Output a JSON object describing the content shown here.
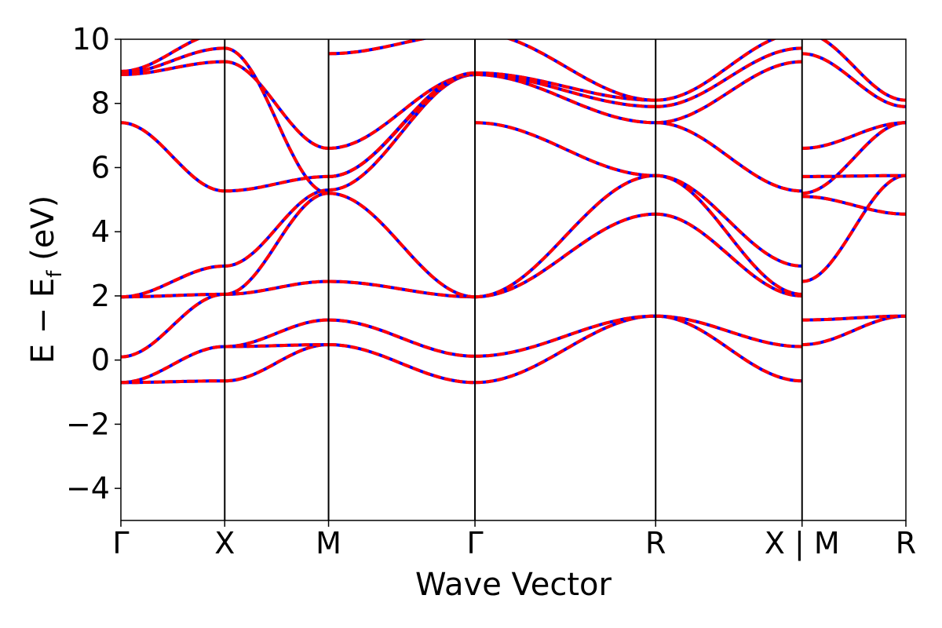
{
  "chart_data": {
    "type": "line",
    "xlabel": "Wave Vector",
    "ylabel": {
      "main": "E − E",
      "sub": "f",
      "unit": " (eV)"
    },
    "ylim": [
      -5,
      10
    ],
    "yticks": [
      -4,
      -2,
      0,
      2,
      4,
      6,
      8,
      10
    ],
    "ytick_labels": [
      "−4",
      "−2",
      "0",
      "2",
      "4",
      "6",
      "8",
      "10"
    ],
    "xlim": [
      0,
      7.56
    ],
    "kpoints": [
      {
        "label": "Γ",
        "x": 0
      },
      {
        "label": "X",
        "x": 1.0
      },
      {
        "label": "M",
        "x": 2.0
      },
      {
        "label": "Γ",
        "x": 3.41
      },
      {
        "label": "R",
        "x": 5.15
      },
      {
        "label": "X | M",
        "x": 6.56
      },
      {
        "label": "R",
        "x": 7.56
      }
    ],
    "grid": false,
    "line_colors": {
      "primary": "#ff0000",
      "overlay": "#0000ff"
    },
    "segments": [
      {
        "from": "Γ",
        "to": "X",
        "x0": 0,
        "x1": 1.0,
        "bands": [
          [
            -0.7,
            -0.65
          ],
          [
            -0.7,
            0.42
          ],
          [
            0.1,
            2.05
          ],
          [
            1.97,
            2.05
          ],
          [
            1.97,
            2.93
          ],
          [
            7.4,
            5.27
          ],
          [
            8.9,
            9.3
          ],
          [
            8.95,
            9.72
          ],
          [
            9.0,
            10.2
          ]
        ]
      },
      {
        "from": "X",
        "to": "M",
        "x0": 1.0,
        "x1": 2.0,
        "bands": [
          [
            -0.65,
            0.48
          ],
          [
            0.42,
            0.48
          ],
          [
            0.42,
            1.25
          ],
          [
            2.05,
            2.45
          ],
          [
            2.05,
            5.2
          ],
          [
            2.93,
            5.3
          ],
          [
            5.27,
            5.72
          ],
          [
            9.3,
            6.6
          ],
          [
            9.72,
            5.2
          ]
        ]
      },
      {
        "from": "M",
        "to": "Γ",
        "x0": 2.0,
        "x1": 3.41,
        "bands": [
          [
            0.48,
            -0.7
          ],
          [
            1.25,
            0.12
          ],
          [
            2.45,
            1.97
          ],
          [
            5.2,
            1.97
          ],
          [
            5.3,
            8.9
          ],
          [
            5.72,
            8.9
          ],
          [
            6.6,
            8.9
          ],
          [
            5.72,
            8.95
          ],
          [
            9.55,
            10.2
          ]
        ]
      },
      {
        "from": "Γ",
        "to": "R",
        "x0": 3.41,
        "x1": 5.15,
        "bands": [
          [
            -0.7,
            1.37
          ],
          [
            0.12,
            1.37
          ],
          [
            1.97,
            4.55
          ],
          [
            1.97,
            5.75
          ],
          [
            7.4,
            5.75
          ],
          [
            8.9,
            7.4
          ],
          [
            8.9,
            7.9
          ],
          [
            8.95,
            8.1
          ],
          [
            10.2,
            8.1
          ]
        ]
      },
      {
        "from": "R",
        "to": "X",
        "x0": 5.15,
        "x1": 6.56,
        "bands": [
          [
            1.37,
            -0.65
          ],
          [
            1.37,
            0.42
          ],
          [
            4.55,
            2.0
          ],
          [
            5.75,
            2.05
          ],
          [
            5.75,
            2.93
          ],
          [
            7.4,
            5.27
          ],
          [
            7.4,
            9.3
          ],
          [
            7.9,
            9.72
          ],
          [
            8.1,
            10.2
          ]
        ]
      },
      {
        "from": "M",
        "to": "R",
        "x0": 6.56,
        "x1": 7.56,
        "bands": [
          [
            0.48,
            1.37
          ],
          [
            1.25,
            1.37
          ],
          [
            2.45,
            5.75
          ],
          [
            5.1,
            4.55
          ],
          [
            5.2,
            7.4
          ],
          [
            5.72,
            5.75
          ],
          [
            6.6,
            7.4
          ],
          [
            9.55,
            7.9
          ],
          [
            10.2,
            8.1
          ]
        ]
      }
    ]
  }
}
